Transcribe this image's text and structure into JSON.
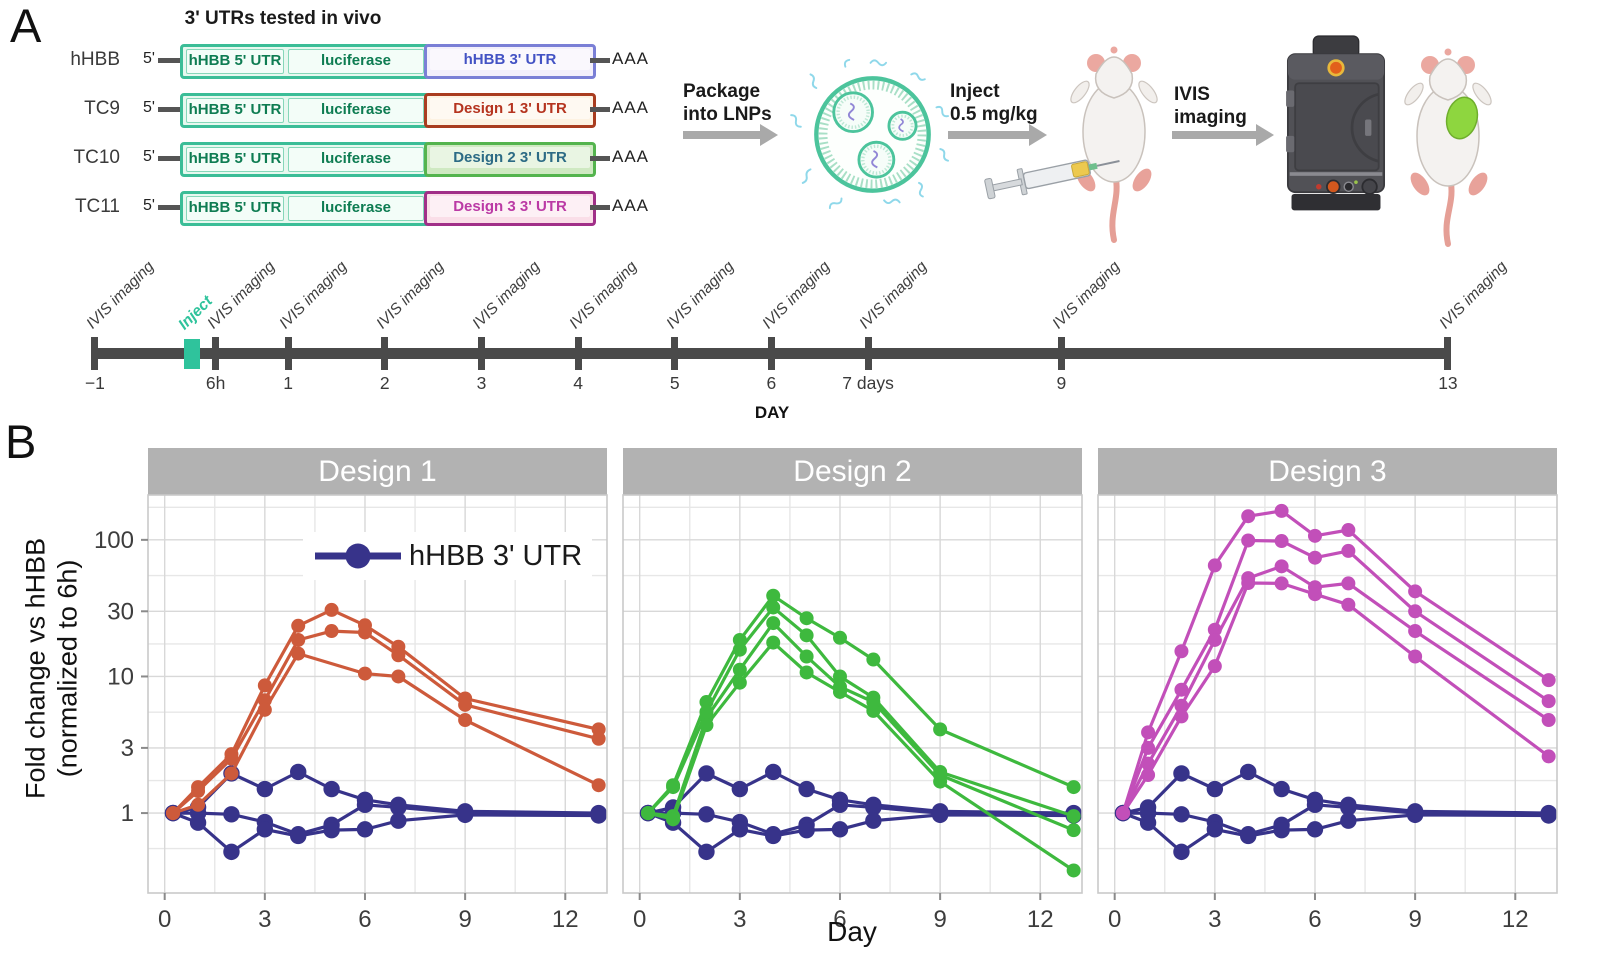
{
  "panel_a": {
    "label": "A",
    "title": "3' UTRs tested in vivo",
    "construct_theme": {
      "backbone_border": "#3bbd97",
      "backbone_fill": "#e7f8ef",
      "inner_fill": "#f3fdf8",
      "inner_border": "#86d7b9",
      "inner_text_color": "#0e7c52",
      "stub_color": "#555555"
    },
    "constructs": [
      {
        "name": "hHBB",
        "five_prime": "5'",
        "segment1": "hHBB 5' UTR",
        "segment2": "luciferase",
        "utr3": "hHBB 3' UTR",
        "utr3_border": "#7a7fd6",
        "utr3_fill": "#f3effb",
        "utr3_text": "#4353c4",
        "poly_a": "AAA"
      },
      {
        "name": "TC9",
        "five_prime": "5'",
        "segment1": "hHBB 5' UTR",
        "segment2": "luciferase",
        "utr3": "Design 1 3' UTR",
        "utr3_border": "#a93c1f",
        "utr3_fill": "#fdf2e2",
        "utr3_text": "#b5341f",
        "poly_a": "AAA"
      },
      {
        "name": "TC10",
        "five_prime": "5'",
        "segment1": "hHBB 5' UTR",
        "segment2": "luciferase",
        "utr3": "Design 2 3' UTR",
        "utr3_border": "#54b44e",
        "utr3_fill": "#cfe9c2",
        "utr3_text": "#2c6b85",
        "poly_a": "AAA"
      },
      {
        "name": "TC11",
        "five_prime": "5'",
        "segment1": "hHBB 5' UTR",
        "segment2": "luciferase",
        "utr3": "Design 3 3' UTR",
        "utr3_border": "#a12f88",
        "utr3_fill": "#fadee8",
        "utr3_text": "#bb3aa5",
        "poly_a": "AAA"
      }
    ],
    "flow_steps": [
      {
        "line1": "Package",
        "line2": "into LNPs"
      },
      {
        "line1": "Inject",
        "line2": "0.5 mg/kg"
      },
      {
        "line1": "IVIS",
        "line2": "imaging"
      }
    ],
    "timeline": {
      "axis_label": "DAY",
      "inject_label": "Inject",
      "inject_color": "#2fc39c",
      "imaging_label": "IVIS imaging",
      "inject_day": 0,
      "ticks": [
        {
          "label": "−1",
          "day": -1
        },
        {
          "label": "6h",
          "day": 0.25
        },
        {
          "label": "1",
          "day": 1
        },
        {
          "label": "2",
          "day": 2
        },
        {
          "label": "3",
          "day": 3
        },
        {
          "label": "4",
          "day": 4
        },
        {
          "label": "5",
          "day": 5
        },
        {
          "label": "6",
          "day": 6
        },
        {
          "label": "7 days",
          "day": 7
        },
        {
          "label": "9",
          "day": 9
        },
        {
          "label": "13",
          "day": 13
        }
      ]
    }
  },
  "panel_b": {
    "label": "B",
    "y_axis_title": [
      "Fold change vs hHBB",
      "(normalized to 6h)"
    ],
    "x_axis_title": "Day",
    "legend": {
      "label": "hHBB 3' UTR",
      "color": "#37338a"
    },
    "chart_style": {
      "header_bg": "#b2b2b2",
      "header_text": "#ffffff",
      "grid_minor": "#e7e7e7",
      "grid_major": "#d8d8d8",
      "border": "#c9c9c9",
      "tick": "#8a8a8a",
      "axis_text": "#3d3d3d"
    }
  },
  "chart_data": [
    {
      "type": "line",
      "title": "Design 1",
      "x": [
        0.25,
        1,
        2,
        3,
        4,
        5,
        6,
        7,
        9,
        13
      ],
      "x_ticks": [
        0,
        3,
        6,
        9,
        12
      ],
      "y_ticks": [
        1,
        3,
        10,
        30,
        100
      ],
      "y_minor": [
        0.55,
        1.73,
        5.48,
        17.3,
        54.8,
        173
      ],
      "x_minor": [
        1.5,
        4.5,
        7.5,
        10.5
      ],
      "y_scale": "log",
      "xlim": [
        -0.5,
        13.25
      ],
      "ylim": [
        0.26,
        213
      ],
      "show_y_axis": true,
      "series": [
        {
          "name": "hHBB 3' UTR mouse 1",
          "control": true,
          "color": "#37338a",
          "values": [
            1,
            1.1,
            1.95,
            1.5,
            2.0,
            1.5,
            1.25,
            1.15,
            1.03,
            1.0
          ]
        },
        {
          "name": "hHBB 3' UTR mouse 2",
          "control": true,
          "color": "#37338a",
          "values": [
            1,
            1.0,
            0.98,
            0.86,
            0.7,
            0.82,
            1.15,
            1.1,
            1.0,
            0.99
          ]
        },
        {
          "name": "hHBB 3' UTR mouse 3",
          "control": true,
          "color": "#37338a",
          "values": [
            1,
            0.85,
            0.52,
            0.76,
            0.68,
            0.75,
            0.76,
            0.88,
            0.97,
            0.96
          ]
        },
        {
          "name": "Design 1 mouse 1",
          "color": "#cd5a3b",
          "values": [
            1,
            1.55,
            2.7,
            8.6,
            23.5,
            30.7,
            23.7,
            16.5,
            6.9,
            4.1
          ]
        },
        {
          "name": "Design 1 mouse 2",
          "color": "#cd5a3b",
          "values": [
            1,
            1.45,
            2.5,
            6.7,
            18.5,
            21.5,
            21.0,
            14.3,
            6.2,
            3.5
          ]
        },
        {
          "name": "Design 1 mouse 3",
          "color": "#cd5a3b",
          "values": [
            1,
            1.15,
            1.95,
            5.7,
            14.7,
            null,
            10.5,
            10.0,
            4.8,
            1.6
          ]
        }
      ]
    },
    {
      "type": "line",
      "title": "Design 2",
      "x": [
        0.25,
        1,
        2,
        3,
        4,
        5,
        6,
        7,
        9,
        13
      ],
      "x_ticks": [
        0,
        3,
        6,
        9,
        12
      ],
      "y_ticks": [
        1,
        3,
        10,
        30,
        100
      ],
      "y_minor": [
        0.55,
        1.73,
        5.48,
        17.3,
        54.8,
        173
      ],
      "x_minor": [
        1.5,
        4.5,
        7.5,
        10.5
      ],
      "y_scale": "log",
      "xlim": [
        -0.5,
        13.25
      ],
      "ylim": [
        0.26,
        213
      ],
      "show_y_axis": false,
      "series": [
        {
          "name": "hHBB 3' UTR mouse 1",
          "control": true,
          "color": "#37338a",
          "values": [
            1,
            1.1,
            1.95,
            1.5,
            2.0,
            1.5,
            1.25,
            1.15,
            1.03,
            1.0
          ]
        },
        {
          "name": "hHBB 3' UTR mouse 2",
          "control": true,
          "color": "#37338a",
          "values": [
            1,
            1.0,
            0.98,
            0.86,
            0.7,
            0.82,
            1.15,
            1.1,
            1.0,
            0.99
          ]
        },
        {
          "name": "hHBB 3' UTR mouse 3",
          "control": true,
          "color": "#37338a",
          "values": [
            1,
            0.85,
            0.52,
            0.76,
            0.68,
            0.75,
            0.76,
            0.88,
            0.97,
            0.96
          ]
        },
        {
          "name": "Design 2 mouse 1",
          "color": "#3eb93e",
          "values": [
            1,
            1.6,
            6.5,
            18.5,
            39,
            26.7,
            19.2,
            13.3,
            4.1,
            1.55
          ]
        },
        {
          "name": "Design 2 mouse 2",
          "color": "#3eb93e",
          "values": [
            1,
            1.55,
            5.5,
            15.7,
            32,
            20,
            10.0,
            7.0,
            2.0,
            0.95
          ]
        },
        {
          "name": "Design 2 mouse 3",
          "color": "#3eb93e",
          "values": [
            1,
            0.95,
            5.0,
            11.2,
            24.6,
            14.0,
            8.4,
            6.5,
            1.9,
            0.75
          ]
        },
        {
          "name": "Design 2 mouse 4",
          "color": "#3eb93e",
          "values": [
            1,
            0.9,
            4.4,
            9.0,
            17.7,
            10.7,
            7.7,
            5.6,
            1.7,
            0.38
          ]
        }
      ]
    },
    {
      "type": "line",
      "title": "Design 3",
      "x": [
        0.25,
        1,
        2,
        3,
        4,
        5,
        6,
        7,
        9,
        13
      ],
      "x_ticks": [
        0,
        3,
        6,
        9,
        12
      ],
      "y_ticks": [
        1,
        3,
        10,
        30,
        100
      ],
      "y_minor": [
        0.55,
        1.73,
        5.48,
        17.3,
        54.8,
        173
      ],
      "x_minor": [
        1.5,
        4.5,
        7.5,
        10.5
      ],
      "y_scale": "log",
      "xlim": [
        -0.5,
        13.25
      ],
      "ylim": [
        0.26,
        213
      ],
      "show_y_axis": false,
      "series": [
        {
          "name": "hHBB 3' UTR mouse 1",
          "control": true,
          "color": "#37338a",
          "values": [
            1,
            1.1,
            1.95,
            1.5,
            2.0,
            1.5,
            1.25,
            1.15,
            1.03,
            1.0
          ]
        },
        {
          "name": "hHBB 3' UTR mouse 2",
          "control": true,
          "color": "#37338a",
          "values": [
            1,
            1.0,
            0.98,
            0.86,
            0.7,
            0.82,
            1.15,
            1.1,
            1.0,
            0.99
          ]
        },
        {
          "name": "hHBB 3' UTR mouse 3",
          "control": true,
          "color": "#37338a",
          "values": [
            1,
            0.85,
            0.52,
            0.76,
            0.68,
            0.75,
            0.76,
            0.88,
            0.97,
            0.96
          ]
        },
        {
          "name": "Design 3 mouse 1",
          "color": "#c24fb9",
          "values": [
            1,
            3.9,
            15.3,
            65,
            149,
            163,
            107,
            118,
            42,
            9.4
          ]
        },
        {
          "name": "Design 3 mouse 2",
          "color": "#c24fb9",
          "values": [
            1,
            3.0,
            8.0,
            22,
            99,
            98,
            74,
            83,
            30,
            6.6
          ]
        },
        {
          "name": "Design 3 mouse 3",
          "color": "#c24fb9",
          "values": [
            1,
            2.3,
            6.1,
            18.5,
            52.5,
            64,
            45,
            48,
            21.5,
            4.8
          ]
        },
        {
          "name": "Design 3 mouse 4",
          "color": "#c24fb9",
          "values": [
            1,
            1.9,
            5.1,
            11.9,
            48.3,
            48,
            40,
            33.5,
            14,
            2.6
          ]
        }
      ]
    }
  ]
}
